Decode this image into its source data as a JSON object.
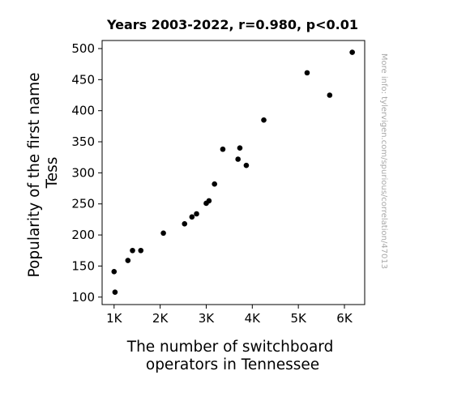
{
  "chart_data": {
    "type": "scatter",
    "title": "Years 2003-2022, r=0.980, p<0.01",
    "xlabel": [
      "The number of switchboard",
      "operators in Tennessee"
    ],
    "ylabel": [
      "Popularity of the first name",
      "Tess"
    ],
    "xlim": [
      740,
      6440
    ],
    "ylim": [
      88,
      513
    ],
    "x_ticks": [
      {
        "value": 1000,
        "label": "1K"
      },
      {
        "value": 2000,
        "label": "2K"
      },
      {
        "value": 3000,
        "label": "3K"
      },
      {
        "value": 4000,
        "label": "4K"
      },
      {
        "value": 5000,
        "label": "5K"
      },
      {
        "value": 6000,
        "label": "6K"
      }
    ],
    "y_ticks": [
      {
        "value": 100,
        "label": "100"
      },
      {
        "value": 150,
        "label": "150"
      },
      {
        "value": 200,
        "label": "200"
      },
      {
        "value": 250,
        "label": "250"
      },
      {
        "value": 300,
        "label": "300"
      },
      {
        "value": 350,
        "label": "350"
      },
      {
        "value": 400,
        "label": "400"
      },
      {
        "value": 450,
        "label": "450"
      },
      {
        "value": 500,
        "label": "500"
      }
    ],
    "grid": false,
    "marker_color": "#000000",
    "points": [
      {
        "x": 6170,
        "y": 494
      },
      {
        "x": 5190,
        "y": 461
      },
      {
        "x": 5680,
        "y": 425
      },
      {
        "x": 4250,
        "y": 385
      },
      {
        "x": 3360,
        "y": 338
      },
      {
        "x": 3730,
        "y": 340
      },
      {
        "x": 3690,
        "y": 322
      },
      {
        "x": 3870,
        "y": 312
      },
      {
        "x": 3180,
        "y": 282
      },
      {
        "x": 3060,
        "y": 255
      },
      {
        "x": 3000,
        "y": 251
      },
      {
        "x": 2790,
        "y": 234
      },
      {
        "x": 2690,
        "y": 229
      },
      {
        "x": 2530,
        "y": 218
      },
      {
        "x": 2070,
        "y": 203
      },
      {
        "x": 1400,
        "y": 175
      },
      {
        "x": 1580,
        "y": 175
      },
      {
        "x": 1300,
        "y": 159
      },
      {
        "x": 1000,
        "y": 141
      },
      {
        "x": 1020,
        "y": 108
      }
    ]
  },
  "watermark": "More info: tylervigen.com/spurious/correlation/47013"
}
